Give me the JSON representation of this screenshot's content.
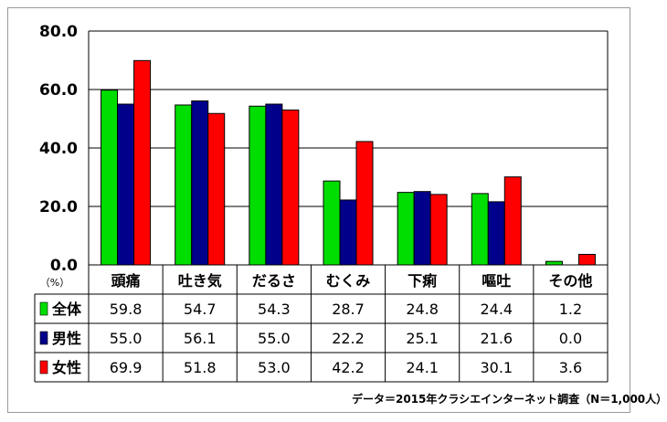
{
  "chart_data": {
    "type": "bar",
    "categories": [
      "頭痛",
      "吐き気",
      "だるさ",
      "むくみ",
      "下痢",
      "嘔吐",
      "その他"
    ],
    "series": [
      {
        "name": "全体",
        "color": "#00dd00",
        "values": [
          59.8,
          54.7,
          54.3,
          28.7,
          24.8,
          24.4,
          1.2
        ]
      },
      {
        "name": "男性",
        "color": "#00008b",
        "values": [
          55.0,
          56.1,
          55.0,
          22.2,
          25.1,
          21.6,
          0.0
        ]
      },
      {
        "name": "女性",
        "color": "#ff0000",
        "values": [
          69.9,
          51.8,
          53.0,
          42.2,
          24.1,
          30.1,
          3.6
        ]
      }
    ],
    "ylim": [
      0,
      80
    ],
    "yticks": [
      "0.0",
      "20.0",
      "40.0",
      "60.0",
      "80.0"
    ],
    "ylabel": "（%）",
    "grid": true,
    "data_table": true
  },
  "source_note": "データ＝2015年クラシエインターネット調査（N＝1,000人）"
}
